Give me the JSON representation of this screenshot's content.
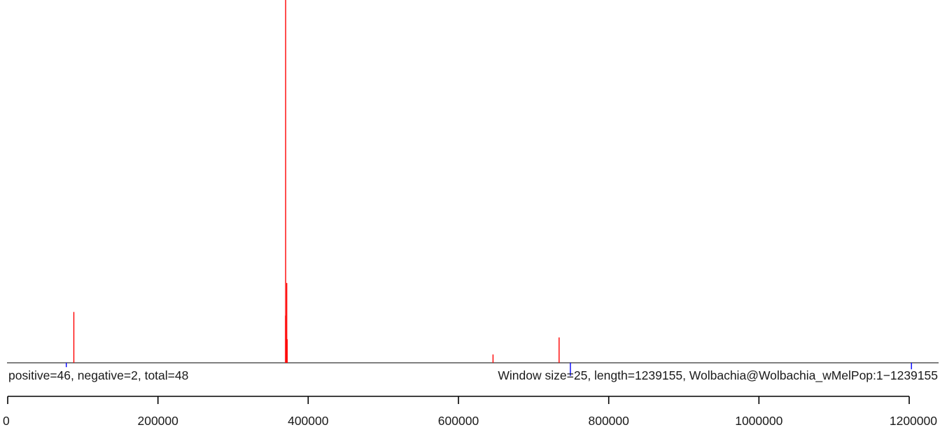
{
  "chart_data": {
    "type": "bar",
    "x_unit": "genome position",
    "xlim": [
      0,
      1239155
    ],
    "axis_ticks": [
      0,
      200000,
      400000,
      600000,
      800000,
      1000000,
      1200000
    ],
    "axis_tick_labels": [
      "0",
      "200000",
      "400000",
      "600000",
      "800000",
      "1000000",
      "1200000"
    ],
    "ylim": [
      0,
      1
    ],
    "series": [
      {
        "colour": "#ff0000",
        "direction": "up",
        "points": [
          {
            "x": 88000,
            "y": 0.14
          },
          {
            "x": 370000,
            "y": 1.0
          },
          {
            "x": 371500,
            "y": 0.22
          },
          {
            "x": 369800,
            "y": 0.13
          },
          {
            "x": 372000,
            "y": 0.065
          },
          {
            "x": 646000,
            "y": 0.023
          },
          {
            "x": 734000,
            "y": 0.07
          }
        ]
      },
      {
        "colour": "#0000ff",
        "direction": "down",
        "points": [
          {
            "x": 78000,
            "y": 0.012
          },
          {
            "x": 749000,
            "y": 0.036
          },
          {
            "x": 1203000,
            "y": 0.018
          }
        ]
      }
    ],
    "stats_label": "positive=46, negative=2, total=48",
    "info_label": "Window size=25, length=1239155, Wolbachia@Wolbachia_wMelPop:1−1239155"
  }
}
